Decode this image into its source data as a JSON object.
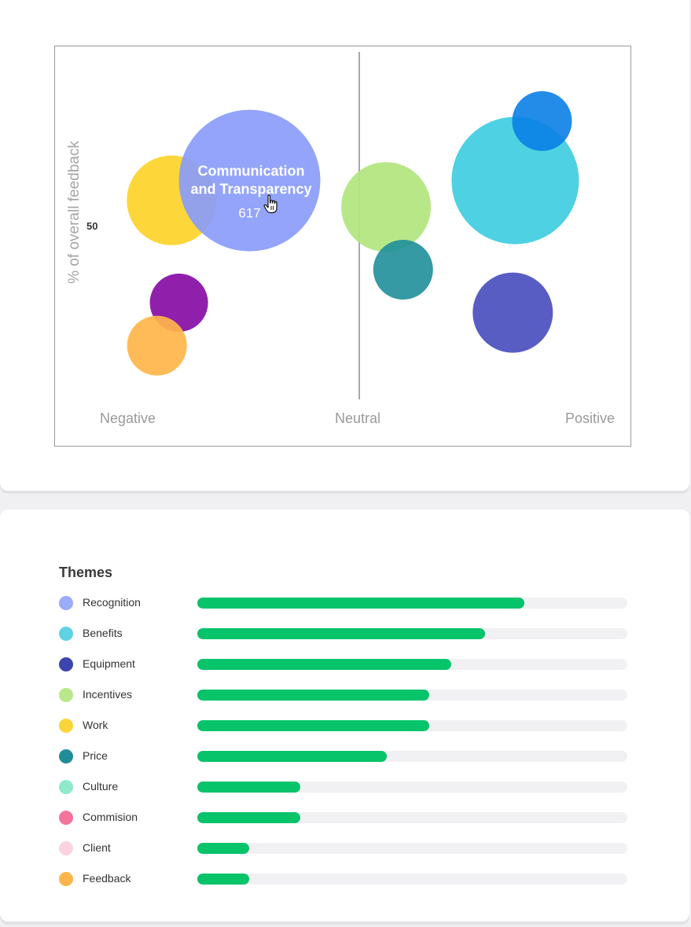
{
  "chart_data": [
    {
      "type": "scatter",
      "subtype": "bubble",
      "ylabel": "% of overall feedback",
      "y_ticks": [
        "50"
      ],
      "x_categories": [
        "Negative",
        "Neutral",
        "Positive"
      ],
      "grid": false,
      "bubbles": [
        {
          "sentiment": -0.77,
          "share": 56,
          "size": 114,
          "color": "#fdd42f",
          "opacity": 0.95
        },
        {
          "sentiment": -0.45,
          "share": 62,
          "size": 180,
          "color": "#8a9cfa",
          "opacity": 0.92,
          "label_lines": [
            "Communication",
            "and Transparency"
          ],
          "value_label": "617",
          "highlighted": true
        },
        {
          "sentiment": -0.74,
          "share": 25,
          "size": 74,
          "color": "#880fa6",
          "opacity": 0.93
        },
        {
          "sentiment": -0.83,
          "share": 12,
          "size": 76,
          "color": "#ffb54a",
          "opacity": 0.92
        },
        {
          "sentiment": 0.11,
          "share": 54,
          "size": 114,
          "color": "#b2e57e",
          "opacity": 0.92
        },
        {
          "sentiment": 0.18,
          "share": 35,
          "size": 76,
          "color": "#1f8f9a",
          "opacity": 0.9
        },
        {
          "sentiment": 0.64,
          "share": 62,
          "size": 162,
          "color": "#3fcde0",
          "opacity": 0.92
        },
        {
          "sentiment": 0.75,
          "share": 80,
          "size": 76,
          "color": "#0a7fe6",
          "opacity": 0.9
        },
        {
          "sentiment": 0.63,
          "share": 22,
          "size": 102,
          "color": "#4a4fbf",
          "opacity": 0.92
        }
      ]
    },
    {
      "type": "bar",
      "orientation": "horizontal",
      "title": "Themes",
      "categories": [
        "Recognition",
        "Benefits",
        "Equipment",
        "Incentives",
        "Work",
        "Price",
        "Culture",
        "Commision",
        "Client",
        "Feedback"
      ],
      "values": [
        0.76,
        0.67,
        0.59,
        0.54,
        0.54,
        0.44,
        0.24,
        0.24,
        0.12,
        0.12
      ],
      "category_colors": [
        "#9aabf8",
        "#5fd3e6",
        "#3c44b0",
        "#b9e88a",
        "#fad538",
        "#218d99",
        "#8eeacb",
        "#f4749c",
        "#fbd3e0",
        "#ffb54a"
      ],
      "bar_color": "#07c36a",
      "track_color": "#f1f1f3",
      "xlim": [
        0,
        1
      ]
    }
  ]
}
